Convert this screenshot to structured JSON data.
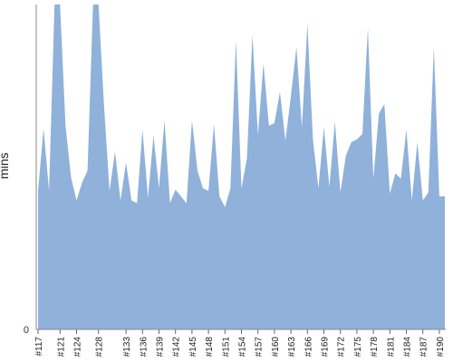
{
  "chart_data": {
    "type": "area",
    "title": "",
    "xlabel": "",
    "ylabel": "mins",
    "color": "#8fb1da",
    "axis_color": "#888888",
    "grid": false,
    "ylim": [
      0,
      240
    ],
    "yticks": [
      0
    ],
    "x": [
      117,
      118,
      119,
      120,
      121,
      122,
      123,
      124,
      125,
      126,
      127,
      128,
      129,
      130,
      131,
      132,
      133,
      134,
      135,
      136,
      137,
      138,
      139,
      140,
      141,
      142,
      143,
      144,
      145,
      146,
      147,
      148,
      149,
      150,
      151,
      152,
      153,
      154,
      155,
      156,
      157,
      158,
      159,
      160,
      161,
      162,
      163,
      164,
      165,
      166,
      167,
      168,
      169,
      170,
      171,
      172,
      173,
      174,
      175,
      176,
      177,
      178,
      179,
      180,
      181,
      182,
      183,
      184,
      185,
      186,
      187,
      188,
      189,
      190,
      191
    ],
    "xtick_labels": [
      "#117",
      "#121",
      "#124",
      "#128",
      "#133",
      "#136",
      "#139",
      "#142",
      "#145",
      "#148",
      "#151",
      "#154",
      "#157",
      "#160",
      "#163",
      "#166",
      "#169",
      "#172",
      "#175",
      "#178",
      "#181",
      "#184",
      "#187",
      "#190"
    ],
    "xtick_positions": [
      117,
      121,
      124,
      128,
      133,
      136,
      139,
      142,
      145,
      148,
      151,
      154,
      157,
      160,
      163,
      166,
      169,
      172,
      175,
      178,
      181,
      184,
      187,
      190
    ],
    "values": [
      102,
      148,
      102,
      240,
      240,
      150,
      112,
      95,
      108,
      117,
      240,
      240,
      165,
      102,
      131,
      95,
      123,
      95,
      93,
      147,
      97,
      143,
      104,
      154,
      93,
      103,
      98,
      93,
      154,
      117,
      104,
      102,
      151,
      98,
      90,
      104,
      213,
      104,
      126,
      217,
      143,
      196,
      150,
      152,
      175,
      139,
      172,
      208,
      149,
      225,
      140,
      104,
      149,
      105,
      153,
      101,
      128,
      138,
      140,
      144,
      222,
      111,
      159,
      166,
      100,
      115,
      111,
      147,
      95,
      138,
      95,
      101,
      208,
      98,
      98
    ]
  }
}
